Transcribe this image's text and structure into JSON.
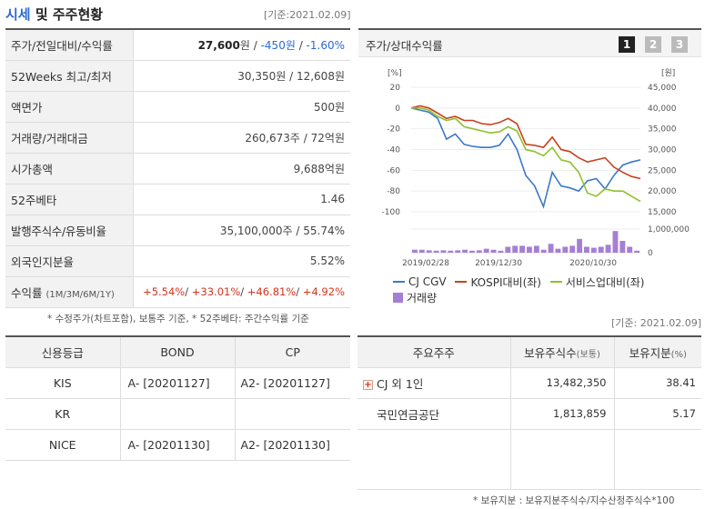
{
  "header": {
    "title_part1": "시세",
    "title_part2": " 및 주주현황",
    "base_date": "[기준:2021.02.09]"
  },
  "quote": {
    "price_label": "주가/전일대비/수익률",
    "price": "27,600",
    "price_unit": "원 / ",
    "change": "-450원",
    "sep": " / ",
    "change_pct": "-1.60%",
    "w52_label": "52Weeks 최고/최저",
    "w52_value": "30,350원 / 12,608원",
    "par_label": "액면가",
    "par_value": "500원",
    "volume_label": "거래량/거래대금",
    "volume_value": "260,673주 / 72억원",
    "mcap_label": "시가총액",
    "mcap_value": "9,688억원",
    "beta_label": "52주베타",
    "beta_value": "1.46",
    "shares_label": "발행주식수/유동비율",
    "shares_value": "35,100,000주 / 55.74%",
    "foreign_label": "외국인지분율",
    "foreign_value": "5.52%",
    "return_label": "수익률",
    "return_sub": "(1M/3M/6M/1Y)",
    "ret_1m": "+5.54%",
    "ret_3m": "+33.01%",
    "ret_6m": "+46.81%",
    "ret_1y": "+4.92%",
    "note": "* 수정주가(차트포함), 보통주 기준, * 52주베타: 주간수익률 기준"
  },
  "chart_panel": {
    "title": "주가/상대수익률",
    "pages": [
      "1",
      "2",
      "3"
    ],
    "active_page": "1",
    "color_up": "#d6321d",
    "color_down": "#2a6bd2"
  },
  "chart_data": {
    "type": "line",
    "y_left_unit": "[%]",
    "y_right_unit": "[원]",
    "y_left_ticks": [
      "20",
      "0",
      "-20",
      "-40",
      "-60",
      "-80",
      "-100"
    ],
    "y_right_ticks": [
      "45,000",
      "40,000",
      "35,000",
      "30,000",
      "25,000",
      "20,000",
      "15,000"
    ],
    "volume_ticks": [
      "1,000,000",
      "0"
    ],
    "x_ticks": [
      "2019/02/28",
      "2019/12/30",
      "2020/10/30"
    ],
    "ylim_left": [
      -100,
      20
    ],
    "series": [
      {
        "name": "CJ CGV",
        "color": "#3a78c9",
        "values": [
          0,
          -2,
          -4,
          -10,
          -30,
          -25,
          -35,
          -37,
          -38,
          -38,
          -36,
          -25,
          -40,
          -65,
          -75,
          -95,
          -62,
          -75,
          -77,
          -80,
          -70,
          -68,
          -78,
          -65,
          -55,
          -52,
          -50
        ]
      },
      {
        "name": "KOSPI대비(좌)",
        "color": "#c8401c",
        "values": [
          0,
          2,
          0,
          -5,
          -10,
          -8,
          -12,
          -12,
          -15,
          -16,
          -14,
          -10,
          -15,
          -35,
          -36,
          -38,
          -28,
          -40,
          -42,
          -48,
          -52,
          -50,
          -48,
          -57,
          -62,
          -66,
          -68
        ]
      },
      {
        "name": "서비스업대비(좌)",
        "color": "#8fc12a",
        "values": [
          0,
          0,
          -2,
          -8,
          -12,
          -10,
          -18,
          -20,
          -22,
          -24,
          -23,
          -18,
          -22,
          -40,
          -42,
          -46,
          -38,
          -50,
          -52,
          -62,
          -82,
          -85,
          -78,
          -80,
          -80,
          -85,
          -90
        ]
      }
    ],
    "volume": {
      "name": "거래량",
      "color": "#a57ed6",
      "values": [
        0.15,
        0.15,
        0.12,
        0.1,
        0.12,
        0.1,
        0.12,
        0.15,
        0.1,
        0.12,
        0.2,
        0.15,
        0.1,
        0.3,
        0.35,
        0.35,
        0.3,
        0.35,
        0.15,
        0.45,
        0.2,
        0.3,
        0.35,
        0.7,
        0.3,
        0.25,
        0.3,
        0.4,
        1.1,
        0.6,
        0.3,
        0.1
      ],
      "ylim": [
        0,
        1.2
      ]
    }
  },
  "legend": {
    "cgv": "CJ CGV",
    "kospi": "KOSPI대비(좌)",
    "service": "서비스업대비(좌)",
    "volume": "거래량"
  },
  "credit": {
    "headers": [
      "신용등급",
      "BOND",
      "CP"
    ],
    "rows": [
      {
        "agency": "KIS",
        "bond": "A-  [20201127]",
        "cp": "A2-  [20201127]"
      },
      {
        "agency": "KR",
        "bond": "",
        "cp": ""
      },
      {
        "agency": "NICE",
        "bond": "A-  [20201130]",
        "cp": "A2-  [20201130]"
      }
    ]
  },
  "shareholders": {
    "base_date": "[기준: 2021.02.09]",
    "header_holder": "주요주주",
    "header_shares": "보유주식수",
    "header_shares_sub": "(보통)",
    "header_pct": "보유지분",
    "header_pct_sub": "(%)",
    "rows": [
      {
        "name": "CJ 외 1인",
        "shares": "13,482,350",
        "pct": "38.41"
      },
      {
        "name": "국민연금공단",
        "shares": "1,813,859",
        "pct": "5.17"
      }
    ],
    "note": "* 보유지분 : 보유지분주식수/지수산정주식수*100"
  }
}
